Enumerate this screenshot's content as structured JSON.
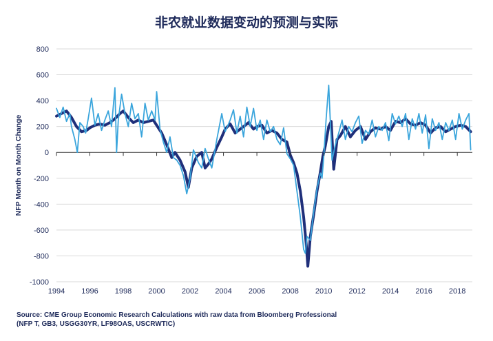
{
  "chart_data": {
    "type": "line",
    "title": "非农就业数据变动的预测与实际",
    "ylabel": "NFP Month on Month Change",
    "xlabel": "",
    "xlim": [
      1994,
      2018.9
    ],
    "ylim": [
      -1000,
      800
    ],
    "y_ticks": [
      800,
      600,
      400,
      200,
      0,
      -200,
      -400,
      -600,
      -800,
      -1000
    ],
    "x_ticks": [
      1994,
      1996,
      1998,
      2000,
      2002,
      2004,
      2006,
      2008,
      2010,
      2012,
      2014,
      2016,
      2018
    ],
    "grid": "horizontal",
    "legend": "none",
    "series": [
      {
        "color": "#1f2f7a",
        "points": [
          [
            1994.0,
            280
          ],
          [
            1994.3,
            300
          ],
          [
            1994.6,
            320
          ],
          [
            1994.9,
            270
          ],
          [
            1995.2,
            200
          ],
          [
            1995.5,
            160
          ],
          [
            1995.8,
            170
          ],
          [
            1996.0,
            190
          ],
          [
            1996.3,
            210
          ],
          [
            1996.6,
            220
          ],
          [
            1996.9,
            210
          ],
          [
            1997.2,
            230
          ],
          [
            1997.5,
            260
          ],
          [
            1997.8,
            300
          ],
          [
            1998.0,
            320
          ],
          [
            1998.3,
            270
          ],
          [
            1998.6,
            230
          ],
          [
            1998.9,
            250
          ],
          [
            1999.2,
            230
          ],
          [
            1999.5,
            240
          ],
          [
            1999.8,
            250
          ],
          [
            2000.0,
            210
          ],
          [
            2000.3,
            150
          ],
          [
            2000.6,
            60
          ],
          [
            2000.9,
            -40
          ],
          [
            2001.1,
            0
          ],
          [
            2001.4,
            -60
          ],
          [
            2001.7,
            -150
          ],
          [
            2001.9,
            -270
          ],
          [
            2002.1,
            -120
          ],
          [
            2002.4,
            -30
          ],
          [
            2002.7,
            0
          ],
          [
            2002.9,
            -120
          ],
          [
            2003.1,
            -90
          ],
          [
            2003.3,
            -50
          ],
          [
            2003.6,
            40
          ],
          [
            2003.9,
            120
          ],
          [
            2004.1,
            180
          ],
          [
            2004.4,
            220
          ],
          [
            2004.7,
            150
          ],
          [
            2004.9,
            170
          ],
          [
            2005.2,
            200
          ],
          [
            2005.5,
            230
          ],
          [
            2005.8,
            180
          ],
          [
            2006.0,
            200
          ],
          [
            2006.3,
            210
          ],
          [
            2006.6,
            150
          ],
          [
            2006.9,
            170
          ],
          [
            2007.2,
            150
          ],
          [
            2007.5,
            100
          ],
          [
            2007.8,
            80
          ],
          [
            2008.0,
            -20
          ],
          [
            2008.2,
            -80
          ],
          [
            2008.4,
            -160
          ],
          [
            2008.6,
            -300
          ],
          [
            2008.8,
            -500
          ],
          [
            2008.95,
            -700
          ],
          [
            2009.05,
            -880
          ],
          [
            2009.2,
            -650
          ],
          [
            2009.4,
            -480
          ],
          [
            2009.6,
            -300
          ],
          [
            2009.8,
            -150
          ],
          [
            2009.95,
            -30
          ],
          [
            2010.1,
            50
          ],
          [
            2010.3,
            200
          ],
          [
            2010.45,
            240
          ],
          [
            2010.6,
            -130
          ],
          [
            2010.8,
            100
          ],
          [
            2011.0,
            130
          ],
          [
            2011.3,
            200
          ],
          [
            2011.6,
            120
          ],
          [
            2011.9,
            170
          ],
          [
            2012.2,
            200
          ],
          [
            2012.5,
            100
          ],
          [
            2012.8,
            160
          ],
          [
            2013.1,
            190
          ],
          [
            2013.4,
            180
          ],
          [
            2013.7,
            200
          ],
          [
            2014.0,
            170
          ],
          [
            2014.3,
            240
          ],
          [
            2014.6,
            230
          ],
          [
            2014.9,
            260
          ],
          [
            2015.2,
            220
          ],
          [
            2015.5,
            210
          ],
          [
            2015.8,
            230
          ],
          [
            2016.1,
            210
          ],
          [
            2016.4,
            150
          ],
          [
            2016.7,
            190
          ],
          [
            2017.0,
            200
          ],
          [
            2017.3,
            160
          ],
          [
            2017.6,
            180
          ],
          [
            2017.9,
            200
          ],
          [
            2018.2,
            210
          ],
          [
            2018.5,
            200
          ],
          [
            2018.8,
            160
          ]
        ]
      },
      {
        "color": "#3aa5dc",
        "points": [
          [
            1994.0,
            340
          ],
          [
            1994.2,
            270
          ],
          [
            1994.4,
            350
          ],
          [
            1994.6,
            240
          ],
          [
            1994.8,
            300
          ],
          [
            1994.9,
            200
          ],
          [
            1995.1,
            100
          ],
          [
            1995.25,
            0
          ],
          [
            1995.4,
            230
          ],
          [
            1995.6,
            200
          ],
          [
            1995.75,
            150
          ],
          [
            1995.9,
            260
          ],
          [
            1996.1,
            420
          ],
          [
            1996.3,
            210
          ],
          [
            1996.5,
            300
          ],
          [
            1996.7,
            170
          ],
          [
            1996.9,
            250
          ],
          [
            1997.1,
            320
          ],
          [
            1997.3,
            200
          ],
          [
            1997.5,
            500
          ],
          [
            1997.6,
            0
          ],
          [
            1997.7,
            250
          ],
          [
            1997.9,
            450
          ],
          [
            1998.1,
            300
          ],
          [
            1998.3,
            200
          ],
          [
            1998.5,
            380
          ],
          [
            1998.7,
            260
          ],
          [
            1998.9,
            300
          ],
          [
            1999.1,
            120
          ],
          [
            1999.3,
            380
          ],
          [
            1999.5,
            250
          ],
          [
            1999.7,
            320
          ],
          [
            1999.9,
            250
          ],
          [
            2000.0,
            470
          ],
          [
            2000.2,
            180
          ],
          [
            2000.4,
            80
          ],
          [
            2000.6,
            0
          ],
          [
            2000.8,
            120
          ],
          [
            2001.0,
            -40
          ],
          [
            2001.2,
            -60
          ],
          [
            2001.4,
            -100
          ],
          [
            2001.6,
            -180
          ],
          [
            2001.8,
            -320
          ],
          [
            2002.0,
            -200
          ],
          [
            2002.2,
            20
          ],
          [
            2002.5,
            -80
          ],
          [
            2002.7,
            -120
          ],
          [
            2002.9,
            30
          ],
          [
            2003.1,
            -50
          ],
          [
            2003.3,
            -120
          ],
          [
            2003.6,
            100
          ],
          [
            2003.9,
            300
          ],
          [
            2004.1,
            160
          ],
          [
            2004.4,
            250
          ],
          [
            2004.6,
            330
          ],
          [
            2004.8,
            150
          ],
          [
            2005.0,
            280
          ],
          [
            2005.2,
            120
          ],
          [
            2005.4,
            350
          ],
          [
            2005.6,
            200
          ],
          [
            2005.8,
            340
          ],
          [
            2006.0,
            170
          ],
          [
            2006.2,
            250
          ],
          [
            2006.4,
            100
          ],
          [
            2006.6,
            250
          ],
          [
            2006.8,
            160
          ],
          [
            2007.0,
            200
          ],
          [
            2007.2,
            100
          ],
          [
            2007.4,
            60
          ],
          [
            2007.6,
            190
          ],
          [
            2007.8,
            -10
          ],
          [
            2008.0,
            -50
          ],
          [
            2008.2,
            -100
          ],
          [
            2008.4,
            -300
          ],
          [
            2008.6,
            -500
          ],
          [
            2008.8,
            -750
          ],
          [
            2008.9,
            -780
          ],
          [
            2009.0,
            -650
          ],
          [
            2009.2,
            -680
          ],
          [
            2009.4,
            -460
          ],
          [
            2009.6,
            -280
          ],
          [
            2009.8,
            -160
          ],
          [
            2009.9,
            -200
          ],
          [
            2010.0,
            -40
          ],
          [
            2010.15,
            270
          ],
          [
            2010.3,
            520
          ],
          [
            2010.5,
            -60
          ],
          [
            2010.7,
            60
          ],
          [
            2010.9,
            150
          ],
          [
            2011.1,
            250
          ],
          [
            2011.3,
            100
          ],
          [
            2011.5,
            200
          ],
          [
            2011.7,
            160
          ],
          [
            2011.9,
            230
          ],
          [
            2012.1,
            280
          ],
          [
            2012.3,
            70
          ],
          [
            2012.5,
            170
          ],
          [
            2012.7,
            140
          ],
          [
            2012.9,
            250
          ],
          [
            2013.1,
            120
          ],
          [
            2013.3,
            200
          ],
          [
            2013.5,
            170
          ],
          [
            2013.7,
            230
          ],
          [
            2013.9,
            90
          ],
          [
            2014.1,
            300
          ],
          [
            2014.3,
            220
          ],
          [
            2014.5,
            280
          ],
          [
            2014.7,
            200
          ],
          [
            2014.9,
            300
          ],
          [
            2015.1,
            100
          ],
          [
            2015.3,
            260
          ],
          [
            2015.5,
            180
          ],
          [
            2015.7,
            300
          ],
          [
            2015.9,
            150
          ],
          [
            2016.1,
            290
          ],
          [
            2016.3,
            30
          ],
          [
            2016.5,
            260
          ],
          [
            2016.7,
            170
          ],
          [
            2016.9,
            230
          ],
          [
            2017.1,
            100
          ],
          [
            2017.3,
            230
          ],
          [
            2017.5,
            170
          ],
          [
            2017.7,
            250
          ],
          [
            2017.9,
            100
          ],
          [
            2018.1,
            300
          ],
          [
            2018.3,
            180
          ],
          [
            2018.5,
            250
          ],
          [
            2018.7,
            300
          ],
          [
            2018.8,
            20
          ]
        ]
      }
    ]
  },
  "source": {
    "line1": "Source: CME Group Economic Research Calculations with raw data from Bloomberg Professional",
    "line2": "(NFP T, GB3, USGG30YR, LF98OAS, USCRWTIC)"
  },
  "colors": {
    "text": "#1e2a5a",
    "grid": "#d9d9d9",
    "axis": "#333333"
  }
}
